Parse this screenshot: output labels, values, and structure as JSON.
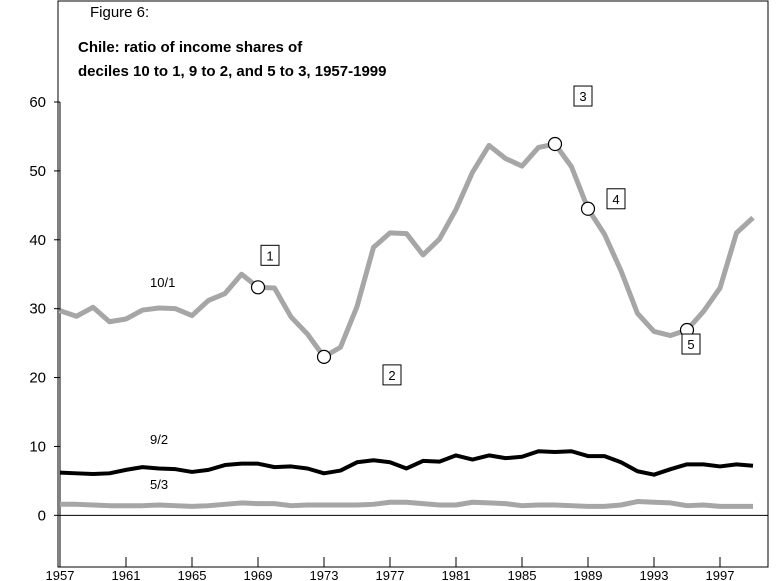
{
  "chart_data": {
    "type": "line",
    "figure_label": "Figure 6:",
    "title": "Chile: ratio of income shares of",
    "subtitle": "deciles 10 to 1, 9 to 2, and 5 to 3, 1957-1999",
    "x": [
      1957,
      1958,
      1959,
      1960,
      1961,
      1962,
      1963,
      1964,
      1965,
      1966,
      1967,
      1968,
      1969,
      1970,
      1971,
      1972,
      1973,
      1974,
      1975,
      1976,
      1977,
      1978,
      1979,
      1980,
      1981,
      1982,
      1983,
      1984,
      1985,
      1986,
      1987,
      1988,
      1989,
      1990,
      1991,
      1992,
      1993,
      1994,
      1995,
      1996,
      1997,
      1998,
      1999
    ],
    "series": [
      {
        "name": "10/1",
        "color": "#a6a6a6",
        "values": [
          29.7,
          28.9,
          30.2,
          28.1,
          28.5,
          29.8,
          30.1,
          30.0,
          29.0,
          31.2,
          32.2,
          35.0,
          33.1,
          33.0,
          28.8,
          26.3,
          23.0,
          24.4,
          30.3,
          38.9,
          41.0,
          40.9,
          37.8,
          40.1,
          44.4,
          49.8,
          53.7,
          51.8,
          50.7,
          53.4,
          53.9,
          50.6,
          44.5,
          40.8,
          35.5,
          29.3,
          26.7,
          26.1,
          26.9,
          29.6,
          33.0,
          41.0,
          43.2
        ]
      },
      {
        "name": "9/2",
        "color": "#000000",
        "values": [
          6.2,
          6.1,
          6.0,
          6.1,
          6.6,
          7.0,
          6.8,
          6.7,
          6.3,
          6.6,
          7.3,
          7.5,
          7.5,
          7.0,
          7.1,
          6.8,
          6.1,
          6.5,
          7.7,
          8.0,
          7.7,
          6.8,
          7.9,
          7.8,
          8.7,
          8.1,
          8.7,
          8.3,
          8.5,
          9.3,
          9.2,
          9.3,
          8.6,
          8.6,
          7.7,
          6.4,
          5.9,
          6.7,
          7.4,
          7.4,
          7.1,
          7.4,
          7.2
        ]
      },
      {
        "name": "5/3",
        "color": "#a6a6a6",
        "values": [
          1.6,
          1.6,
          1.5,
          1.4,
          1.4,
          1.4,
          1.5,
          1.4,
          1.3,
          1.4,
          1.6,
          1.8,
          1.7,
          1.7,
          1.4,
          1.5,
          1.5,
          1.5,
          1.5,
          1.6,
          1.9,
          1.9,
          1.7,
          1.5,
          1.5,
          1.9,
          1.8,
          1.7,
          1.4,
          1.5,
          1.5,
          1.4,
          1.3,
          1.3,
          1.5,
          2.0,
          1.9,
          1.8,
          1.4,
          1.5,
          1.3,
          1.3,
          1.3
        ]
      }
    ],
    "annotations": [
      {
        "label": "1",
        "x": 1969,
        "y": 33.1
      },
      {
        "label": "2",
        "x": 1973,
        "y": 23.0
      },
      {
        "label": "3",
        "x": 1987,
        "y": 53.9
      },
      {
        "label": "4",
        "x": 1989,
        "y": 44.5
      },
      {
        "label": "5",
        "x": 1995,
        "y": 26.9
      }
    ],
    "xlim": [
      1957,
      1999
    ],
    "xticks": [
      1957,
      1961,
      1965,
      1969,
      1973,
      1977,
      1981,
      1985,
      1989,
      1993,
      1997
    ],
    "ylim": [
      -7.5,
      60
    ],
    "yticks": [
      0,
      10,
      20,
      30,
      40,
      50,
      60
    ]
  }
}
